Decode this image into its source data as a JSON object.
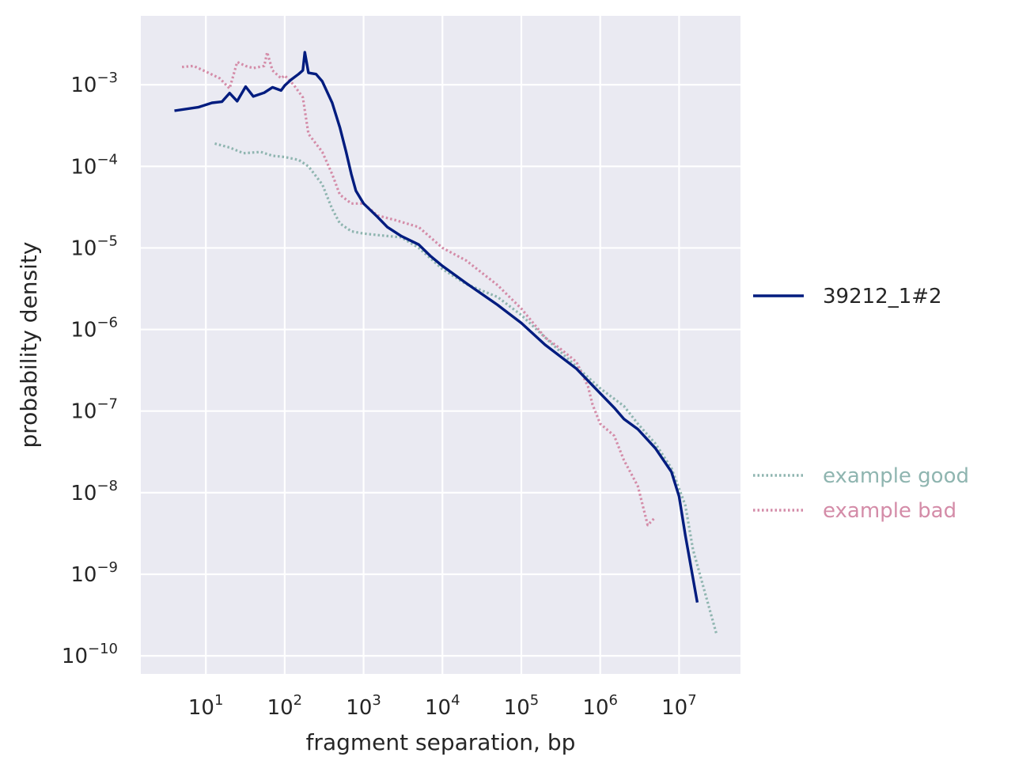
{
  "chart_data": {
    "type": "line",
    "title": "",
    "xlabel": "fragment separation, bp",
    "ylabel": "probability density",
    "x_scale": "log",
    "y_scale": "log",
    "xlim": [
      1.5,
      60000000
    ],
    "ylim": [
      6e-11,
      0.007
    ],
    "x_ticks": [
      10,
      100,
      1000,
      10000,
      100000,
      1000000,
      10000000
    ],
    "x_tick_labels": [
      {
        "base": "10",
        "exp": "1"
      },
      {
        "base": "10",
        "exp": "2"
      },
      {
        "base": "10",
        "exp": "3"
      },
      {
        "base": "10",
        "exp": "4"
      },
      {
        "base": "10",
        "exp": "5"
      },
      {
        "base": "10",
        "exp": "6"
      },
      {
        "base": "10",
        "exp": "7"
      }
    ],
    "y_ticks": [
      1e-10,
      1e-09,
      1e-08,
      1e-07,
      1e-06,
      1e-05,
      0.0001,
      0.001
    ],
    "y_tick_labels": [
      {
        "base": "10",
        "exp": "−10"
      },
      {
        "base": "10",
        "exp": "−9"
      },
      {
        "base": "10",
        "exp": "−8"
      },
      {
        "base": "10",
        "exp": "−7"
      },
      {
        "base": "10",
        "exp": "−6"
      },
      {
        "base": "10",
        "exp": "−5"
      },
      {
        "base": "10",
        "exp": "−4"
      },
      {
        "base": "10",
        "exp": "−3"
      }
    ],
    "grid": true,
    "legend_placement": "right",
    "series": [
      {
        "name": "39212_1#2",
        "style": "solid",
        "color": "#001c7f",
        "points": [
          [
            4,
            0.00048
          ],
          [
            8,
            0.00053
          ],
          [
            12,
            0.0006
          ],
          [
            16,
            0.00062
          ],
          [
            20,
            0.00079
          ],
          [
            25,
            0.00063
          ],
          [
            32,
            0.00095
          ],
          [
            40,
            0.00072
          ],
          [
            55,
            0.0008
          ],
          [
            70,
            0.00093
          ],
          [
            90,
            0.00085
          ],
          [
            100,
            0.00098
          ],
          [
            120,
            0.00115
          ],
          [
            150,
            0.00135
          ],
          [
            170,
            0.0015
          ],
          [
            180,
            0.0025
          ],
          [
            200,
            0.0014
          ],
          [
            250,
            0.00135
          ],
          [
            300,
            0.0011
          ],
          [
            400,
            0.0006
          ],
          [
            500,
            0.0003
          ],
          [
            600,
            0.00015
          ],
          [
            700,
            8e-05
          ],
          [
            800,
            5e-05
          ],
          [
            1000,
            3.5e-05
          ],
          [
            1500,
            2.4e-05
          ],
          [
            2000,
            1.8e-05
          ],
          [
            3000,
            1.4e-05
          ],
          [
            5000,
            1.1e-05
          ],
          [
            7000,
            8e-06
          ],
          [
            10000,
            6e-06
          ],
          [
            20000,
            3.7e-06
          ],
          [
            50000,
            2e-06
          ],
          [
            100000,
            1.2e-06
          ],
          [
            200000,
            6.5e-07
          ],
          [
            500000,
            3.3e-07
          ],
          [
            1000000,
            1.65e-07
          ],
          [
            1500000,
            1.1e-07
          ],
          [
            2000000,
            8e-08
          ],
          [
            3000000,
            6e-08
          ],
          [
            5000000,
            3.5e-08
          ],
          [
            8000000,
            1.8e-08
          ],
          [
            10000000,
            9e-09
          ],
          [
            12000000,
            3e-09
          ],
          [
            17000000,
            4.5e-10
          ]
        ]
      },
      {
        "name": "example good",
        "style": "dotted",
        "color": "#8fb5b0",
        "points": [
          [
            13,
            0.00019
          ],
          [
            20,
            0.00017
          ],
          [
            30,
            0.000145
          ],
          [
            50,
            0.00015
          ],
          [
            70,
            0.000135
          ],
          [
            100,
            0.00013
          ],
          [
            150,
            0.00012
          ],
          [
            200,
            0.0001
          ],
          [
            300,
            6e-05
          ],
          [
            400,
            3e-05
          ],
          [
            500,
            2e-05
          ],
          [
            700,
            1.6e-05
          ],
          [
            1000,
            1.5e-05
          ],
          [
            2000,
            1.4e-05
          ],
          [
            3000,
            1.35e-05
          ],
          [
            5000,
            1e-05
          ],
          [
            10000,
            5.5e-06
          ],
          [
            20000,
            3.6e-06
          ],
          [
            50000,
            2.5e-06
          ],
          [
            100000,
            1.5e-06
          ],
          [
            200000,
            8e-07
          ],
          [
            500000,
            3.5e-07
          ],
          [
            1000000,
            1.9e-07
          ],
          [
            2000000,
            1.15e-07
          ],
          [
            3000000,
            7e-08
          ],
          [
            5000000,
            4e-08
          ],
          [
            8000000,
            2e-08
          ],
          [
            12000000,
            7e-09
          ],
          [
            15000000,
            2e-09
          ],
          [
            30000000,
            1.8e-10
          ]
        ]
      },
      {
        "name": "example bad",
        "style": "dotted",
        "color": "#d48ca8",
        "points": [
          [
            5,
            0.00165
          ],
          [
            7,
            0.0017
          ],
          [
            10,
            0.00145
          ],
          [
            15,
            0.0012
          ],
          [
            20,
            0.0009
          ],
          [
            25,
            0.0019
          ],
          [
            32,
            0.0017
          ],
          [
            40,
            0.0016
          ],
          [
            55,
            0.0017
          ],
          [
            60,
            0.0025
          ],
          [
            70,
            0.0015
          ],
          [
            90,
            0.0012
          ],
          [
            100,
            0.0013
          ],
          [
            130,
            0.001
          ],
          [
            170,
            0.0007
          ],
          [
            200,
            0.00025
          ],
          [
            300,
            0.00015
          ],
          [
            400,
            8e-05
          ],
          [
            500,
            4.5e-05
          ],
          [
            700,
            3.5e-05
          ],
          [
            1000,
            3.5e-05
          ],
          [
            1500,
            2.5e-05
          ],
          [
            2500,
            2.2e-05
          ],
          [
            5000,
            1.8e-05
          ],
          [
            10000,
            1e-05
          ],
          [
            20000,
            7e-06
          ],
          [
            50000,
            3.5e-06
          ],
          [
            100000,
            1.8e-06
          ],
          [
            200000,
            8e-07
          ],
          [
            300000,
            6e-07
          ],
          [
            500000,
            4e-07
          ],
          [
            700000,
            2e-07
          ],
          [
            800000,
            1.2e-07
          ],
          [
            1000000,
            7e-08
          ],
          [
            1500000,
            5e-08
          ],
          [
            2000000,
            2.5e-08
          ],
          [
            3000000,
            1.2e-08
          ],
          [
            4000000,
            4e-09
          ],
          [
            5000000,
            5e-09
          ]
        ]
      }
    ]
  }
}
